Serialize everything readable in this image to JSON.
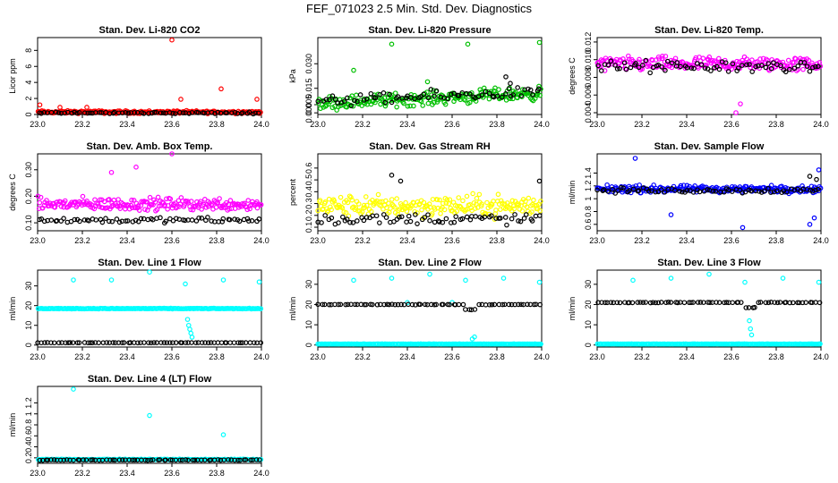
{
  "figure_title": "FEF_071023  2.5 Min. Std. Dev. Diagnostics",
  "colors": {
    "black_series": "#000000"
  },
  "chart_data": [
    {
      "type": "scatter",
      "title": "Stan. Dev. Li-820 CO2",
      "ylabel": "Licor ppm",
      "xlim": [
        23.0,
        24.0
      ],
      "ylim": [
        0,
        9.6
      ],
      "xticks": [
        "23.0",
        "23.2",
        "23.4",
        "23.6",
        "23.8",
        "24.0"
      ],
      "yticks": [
        0,
        2,
        4,
        6,
        8
      ],
      "series": [
        {
          "name": "main",
          "color": "#ff0000",
          "base": 0.3,
          "noise": 0.25,
          "outliers": [
            [
              23.01,
              1.2
            ],
            [
              23.1,
              0.9
            ],
            [
              23.22,
              0.9
            ],
            [
              23.6,
              9.3
            ],
            [
              23.64,
              1.9
            ],
            [
              23.82,
              3.2
            ],
            [
              23.98,
              1.9
            ]
          ]
        },
        {
          "name": "overlay",
          "color": "#000000",
          "base": 0.2,
          "noise": 0.15,
          "outliers": []
        }
      ]
    },
    {
      "type": "scatter",
      "title": "Stan. Dev. Li-820 Pressure",
      "ylabel": "kPa",
      "xlim": [
        23.0,
        24.0
      ],
      "ylim": [
        -0.001,
        0.046
      ],
      "xticks": [
        "23.0",
        "23.2",
        "23.4",
        "23.6",
        "23.8",
        "24.0"
      ],
      "yticks": [
        0.0,
        0.005,
        0.015,
        0.03
      ],
      "ytick_labels": [
        "0.000",
        "0.005",
        "0.015",
        "0.030"
      ],
      "series": [
        {
          "name": "main",
          "color": "#00c000",
          "base_start": 0.006,
          "base_end": 0.012,
          "noise": 0.006,
          "outliers": [
            [
              23.16,
              0.026
            ],
            [
              23.33,
              0.042
            ],
            [
              23.49,
              0.019
            ],
            [
              23.67,
              0.042
            ],
            [
              23.99,
              0.043
            ]
          ]
        },
        {
          "name": "overlay",
          "color": "#000000",
          "base_start": 0.007,
          "base_end": 0.013,
          "noise": 0.005,
          "outliers": [
            [
              23.84,
              0.022
            ],
            [
              23.86,
              0.018
            ]
          ]
        }
      ]
    },
    {
      "type": "scatter",
      "title": "Stan. Dev. Li-820 Temp.",
      "ylabel": "degrees C",
      "xlim": [
        23.0,
        24.0
      ],
      "ylim": [
        0.0038,
        0.0125
      ],
      "xticks": [
        "23.0",
        "23.2",
        "23.4",
        "23.6",
        "23.8",
        "24.0"
      ],
      "yticks": [
        0.004,
        0.006,
        0.008,
        0.01,
        0.012
      ],
      "ytick_labels": [
        "0.004",
        "0.006",
        "0.008",
        "0.010",
        "0.012"
      ],
      "series": [
        {
          "name": "main",
          "color": "#ff00ff",
          "base": 0.0095,
          "noise": 0.0012,
          "outliers": [
            [
              23.62,
              0.004
            ],
            [
              23.64,
              0.005
            ]
          ]
        },
        {
          "name": "overlay",
          "color": "#000000",
          "base": 0.0092,
          "noise": 0.001,
          "outliers": []
        }
      ]
    },
    {
      "type": "scatter",
      "title": "Stan. Dev. Amb. Box Temp.",
      "ylabel": "degrees C",
      "xlim": [
        23.0,
        24.0
      ],
      "ylim": [
        0.07,
        0.36
      ],
      "xticks": [
        "23.0",
        "23.2",
        "23.4",
        "23.6",
        "23.8",
        "24.0"
      ],
      "yticks": [
        0.1,
        0.2,
        0.3
      ],
      "ytick_labels": [
        "0.10",
        "0.20",
        "0.30"
      ],
      "series": [
        {
          "name": "main",
          "color": "#ff00ff",
          "base": 0.17,
          "noise": 0.035,
          "outliers": [
            [
              23.44,
              0.31
            ],
            [
              23.6,
              0.36
            ],
            [
              23.33,
              0.29
            ]
          ]
        },
        {
          "name": "overlay",
          "color": "#000000",
          "base": 0.11,
          "noise": 0.015,
          "outliers": []
        }
      ]
    },
    {
      "type": "scatter",
      "title": "Stan. Dev. Gas Stream RH",
      "ylabel": "percent",
      "xlim": [
        23.0,
        24.0
      ],
      "ylim": [
        0.07,
        0.72
      ],
      "xticks": [
        "23.0",
        "23.2",
        "23.4",
        "23.6",
        "23.8",
        "24.0"
      ],
      "yticks": [
        0.1,
        0.2,
        0.3,
        0.4,
        0.5,
        0.6
      ],
      "series": [
        {
          "name": "main",
          "color": "#ffff00",
          "base": 0.28,
          "noise": 0.13,
          "outliers": []
        },
        {
          "name": "overlay",
          "color": "#000000",
          "base": 0.17,
          "noise": 0.07,
          "outliers": [
            [
              23.33,
              0.54
            ],
            [
              23.37,
              0.49
            ],
            [
              23.99,
              0.49
            ]
          ]
        }
      ]
    },
    {
      "type": "scatter",
      "title": "Stan. Dev. Sample Flow",
      "ylabel": "ml/min",
      "xlim": [
        23.0,
        24.0
      ],
      "ylim": [
        0.5,
        1.7
      ],
      "xticks": [
        "23.0",
        "23.2",
        "23.4",
        "23.6",
        "23.8",
        "24.0"
      ],
      "yticks": [
        0.6,
        0.8,
        1.0,
        1.2,
        1.4
      ],
      "series": [
        {
          "name": "main",
          "color": "#0000ff",
          "base": 1.15,
          "noise": 0.08,
          "outliers": [
            [
              23.17,
              1.63
            ],
            [
              23.33,
              0.75
            ],
            [
              23.65,
              0.55
            ],
            [
              23.95,
              0.6
            ],
            [
              23.97,
              0.7
            ],
            [
              23.99,
              1.45
            ]
          ]
        },
        {
          "name": "overlay",
          "color": "#000000",
          "base": 1.13,
          "noise": 0.06,
          "outliers": [
            [
              23.95,
              1.35
            ],
            [
              23.98,
              1.3
            ]
          ]
        }
      ]
    },
    {
      "type": "scatter",
      "title": "Stan. Dev. Line 1 Flow",
      "ylabel": "ml/min",
      "xlim": [
        23.0,
        24.0
      ],
      "ylim": [
        -1,
        38
      ],
      "xticks": [
        "23.0",
        "23.2",
        "23.4",
        "23.6",
        "23.8",
        "24.0"
      ],
      "yticks": [
        0,
        10,
        20,
        30
      ],
      "series": [
        {
          "name": "main",
          "color": "#00ffff",
          "base": 18.5,
          "noise": 0.25,
          "outliers": [
            [
              23.16,
              33
            ],
            [
              23.33,
              33
            ],
            [
              23.5,
              37
            ],
            [
              23.66,
              31
            ],
            [
              23.83,
              33
            ],
            [
              23.99,
              32
            ],
            [
              23.67,
              13
            ],
            [
              23.675,
              10
            ],
            [
              23.68,
              8
            ],
            [
              23.685,
              6
            ],
            [
              23.69,
              4
            ]
          ]
        },
        {
          "name": "overlay",
          "color": "#000000",
          "base": 1.2,
          "noise": 0.1,
          "outliers": []
        }
      ]
    },
    {
      "type": "scatter",
      "title": "Stan. Dev. Line 2 Flow",
      "ylabel": "ml/min",
      "xlim": [
        23.0,
        24.0
      ],
      "ylim": [
        -1,
        37
      ],
      "xticks": [
        "23.0",
        "23.2",
        "23.4",
        "23.6",
        "23.8",
        "24.0"
      ],
      "yticks": [
        0,
        10,
        20,
        30
      ],
      "series": [
        {
          "name": "main",
          "color": "#00ffff",
          "base": 0.5,
          "noise": 0.1,
          "outliers": [
            [
              23.16,
              32
            ],
            [
              23.33,
              33
            ],
            [
              23.5,
              35
            ],
            [
              23.66,
              32
            ],
            [
              23.83,
              33
            ],
            [
              23.99,
              31
            ],
            [
              23.69,
              3
            ],
            [
              23.7,
              4
            ],
            [
              23.4,
              21
            ],
            [
              23.6,
              21
            ]
          ]
        },
        {
          "name": "overlay",
          "color": "#000000",
          "base": 20.0,
          "noise": 0.2,
          "dip_at": 23.68,
          "dip_to": 17.5,
          "outliers": []
        }
      ]
    },
    {
      "type": "scatter",
      "title": "Stan. Dev. Line 3 Flow",
      "ylabel": "ml/min",
      "xlim": [
        23.0,
        24.0
      ],
      "ylim": [
        -1,
        37
      ],
      "xticks": [
        "23.0",
        "23.2",
        "23.4",
        "23.6",
        "23.8",
        "24.0"
      ],
      "yticks": [
        0,
        10,
        20,
        30
      ],
      "series": [
        {
          "name": "main",
          "color": "#00ffff",
          "base": 0.5,
          "noise": 0.1,
          "outliers": [
            [
              23.16,
              32
            ],
            [
              23.33,
              33
            ],
            [
              23.5,
              35
            ],
            [
              23.66,
              31
            ],
            [
              23.83,
              33
            ],
            [
              23.99,
              31
            ],
            [
              23.68,
              12
            ],
            [
              23.685,
              8
            ],
            [
              23.69,
              5
            ]
          ]
        },
        {
          "name": "overlay",
          "color": "#000000",
          "base": 21.0,
          "noise": 0.2,
          "dip_at": 23.68,
          "dip_to": 18.5,
          "outliers": []
        }
      ]
    },
    {
      "type": "scatter",
      "title": "Stan. Dev. Line 4 (LT) Flow",
      "ylabel": "ml/min",
      "xlim": [
        23.0,
        24.0
      ],
      "ylim": [
        0.1,
        1.5
      ],
      "xticks": [
        "23.0",
        "23.2",
        "23.4",
        "23.6",
        "23.8",
        "24.0"
      ],
      "yticks": [
        0.2,
        0.4,
        0.6,
        0.8,
        1.0,
        1.2
      ],
      "series": [
        {
          "name": "main",
          "color": "#00ffff",
          "base": 0.17,
          "noise": 0.01,
          "outliers": [
            [
              23.16,
              1.45
            ],
            [
              23.5,
              0.97
            ],
            [
              23.83,
              0.62
            ]
          ]
        },
        {
          "name": "overlay",
          "color": "#000000",
          "base": 0.16,
          "noise": 0.008,
          "outliers": []
        }
      ]
    }
  ]
}
